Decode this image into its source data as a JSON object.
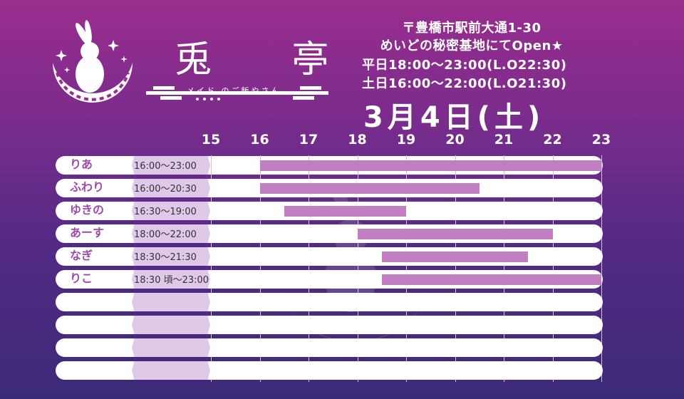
{
  "shop": {
    "name": "兎 亭",
    "subtitle": "メイド のご飯やさん",
    "address": "〒豊橋市駅前大通1-30",
    "open_notice": "めいどの秘密基地にてOpen★",
    "weekday_hours": "平日18:00〜23:00(L.O22:30)",
    "weekend_hours": "土日16:00〜22:00(L.O21:30)"
  },
  "date": "3月4日(土)",
  "hours": [
    "15",
    "16",
    "17",
    "18",
    "19",
    "20",
    "21",
    "22",
    "23"
  ],
  "schedule": [
    {
      "name": "りあ",
      "shift": "16:00〜23:00",
      "start": 16.0,
      "end": 23.0
    },
    {
      "name": "ふわり",
      "shift": "16:00〜20:30",
      "start": 16.0,
      "end": 20.5
    },
    {
      "name": "ゆきの",
      "shift": "16:30〜19:00",
      "start": 16.5,
      "end": 19.0
    },
    {
      "name": "あーす",
      "shift": "18:00〜22:00",
      "start": 18.0,
      "end": 22.0
    },
    {
      "name": "なぎ",
      "shift": "18:30〜21:30",
      "start": 18.5,
      "end": 21.5
    },
    {
      "name": "りこ",
      "shift": "18:30 頃〜23:00",
      "start": 18.5,
      "end": 23.0
    },
    {
      "name": "",
      "shift": "",
      "start": null,
      "end": null
    },
    {
      "name": "",
      "shift": "",
      "start": null,
      "end": null
    },
    {
      "name": "",
      "shift": "",
      "start": null,
      "end": null
    },
    {
      "name": "",
      "shift": "",
      "start": null,
      "end": null
    }
  ],
  "colors": {
    "bar": "#c17fc2",
    "name": "#a04aa8",
    "row": "#ffffff",
    "tab": "#e0c9e8"
  },
  "icons": [
    "rabbit-moon-logo",
    "sparkle-icon",
    "rabbit-moon-watermark"
  ]
}
